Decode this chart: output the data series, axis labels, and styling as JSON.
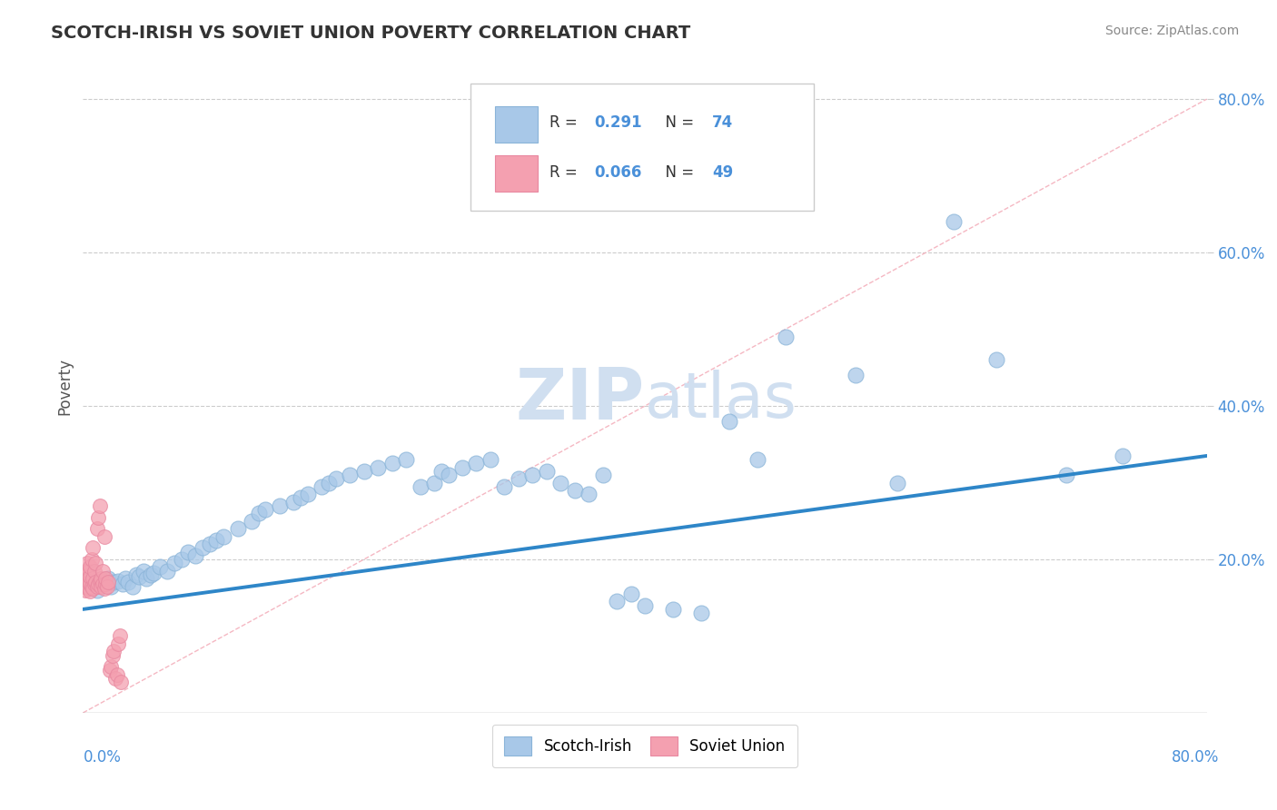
{
  "title": "SCOTCH-IRISH VS SOVIET UNION POVERTY CORRELATION CHART",
  "source": "Source: ZipAtlas.com",
  "ylabel": "Poverty",
  "xmin": 0.0,
  "xmax": 0.8,
  "ymin": 0.0,
  "ymax": 0.85,
  "scotch_irish_R": 0.291,
  "scotch_irish_N": 74,
  "soviet_union_R": 0.066,
  "soviet_union_N": 49,
  "scotch_irish_color": "#a8c8e8",
  "soviet_union_color": "#f4a0b0",
  "scotch_irish_line_color": "#2e86c8",
  "soviet_union_line_color": "#f4a0b0",
  "diagonal_color": "#f4b0bc",
  "watermark_color": "#d0dff0",
  "si_line_x0": 0.0,
  "si_line_y0": 0.135,
  "si_line_x1": 0.8,
  "si_line_y1": 0.335,
  "scotch_irish_x": [
    0.005,
    0.008,
    0.01,
    0.012,
    0.015,
    0.018,
    0.02,
    0.022,
    0.025,
    0.028,
    0.03,
    0.032,
    0.035,
    0.038,
    0.04,
    0.043,
    0.045,
    0.048,
    0.05,
    0.055,
    0.06,
    0.065,
    0.07,
    0.075,
    0.08,
    0.085,
    0.09,
    0.095,
    0.1,
    0.11,
    0.12,
    0.125,
    0.13,
    0.14,
    0.15,
    0.155,
    0.16,
    0.17,
    0.175,
    0.18,
    0.19,
    0.2,
    0.21,
    0.22,
    0.23,
    0.24,
    0.25,
    0.255,
    0.26,
    0.27,
    0.28,
    0.29,
    0.3,
    0.31,
    0.32,
    0.33,
    0.34,
    0.35,
    0.36,
    0.37,
    0.38,
    0.39,
    0.4,
    0.42,
    0.44,
    0.46,
    0.48,
    0.5,
    0.55,
    0.58,
    0.62,
    0.65,
    0.7,
    0.74
  ],
  "scotch_irish_y": [
    0.165,
    0.17,
    0.16,
    0.172,
    0.168,
    0.175,
    0.165,
    0.17,
    0.172,
    0.168,
    0.175,
    0.17,
    0.165,
    0.18,
    0.178,
    0.185,
    0.175,
    0.18,
    0.182,
    0.19,
    0.185,
    0.195,
    0.2,
    0.21,
    0.205,
    0.215,
    0.22,
    0.225,
    0.23,
    0.24,
    0.25,
    0.26,
    0.265,
    0.27,
    0.275,
    0.28,
    0.285,
    0.295,
    0.3,
    0.305,
    0.31,
    0.315,
    0.32,
    0.325,
    0.33,
    0.295,
    0.3,
    0.315,
    0.31,
    0.32,
    0.325,
    0.33,
    0.295,
    0.305,
    0.31,
    0.315,
    0.3,
    0.29,
    0.285,
    0.31,
    0.145,
    0.155,
    0.14,
    0.135,
    0.13,
    0.38,
    0.33,
    0.49,
    0.44,
    0.3,
    0.64,
    0.46,
    0.31,
    0.335
  ],
  "soviet_union_x": [
    0.001,
    0.001,
    0.002,
    0.002,
    0.002,
    0.003,
    0.003,
    0.003,
    0.004,
    0.004,
    0.004,
    0.005,
    0.005,
    0.005,
    0.005,
    0.006,
    0.006,
    0.007,
    0.007,
    0.007,
    0.008,
    0.008,
    0.009,
    0.009,
    0.01,
    0.01,
    0.011,
    0.011,
    0.012,
    0.012,
    0.013,
    0.013,
    0.014,
    0.014,
    0.015,
    0.015,
    0.016,
    0.016,
    0.017,
    0.018,
    0.019,
    0.02,
    0.021,
    0.022,
    0.023,
    0.024,
    0.025,
    0.026,
    0.027
  ],
  "soviet_union_y": [
    0.165,
    0.18,
    0.16,
    0.172,
    0.185,
    0.165,
    0.175,
    0.195,
    0.162,
    0.17,
    0.185,
    0.158,
    0.168,
    0.178,
    0.19,
    0.165,
    0.2,
    0.162,
    0.175,
    0.215,
    0.168,
    0.185,
    0.17,
    0.195,
    0.165,
    0.24,
    0.168,
    0.255,
    0.172,
    0.27,
    0.165,
    0.175,
    0.168,
    0.185,
    0.162,
    0.23,
    0.168,
    0.175,
    0.165,
    0.17,
    0.055,
    0.06,
    0.075,
    0.08,
    0.045,
    0.05,
    0.09,
    0.1,
    0.04
  ]
}
